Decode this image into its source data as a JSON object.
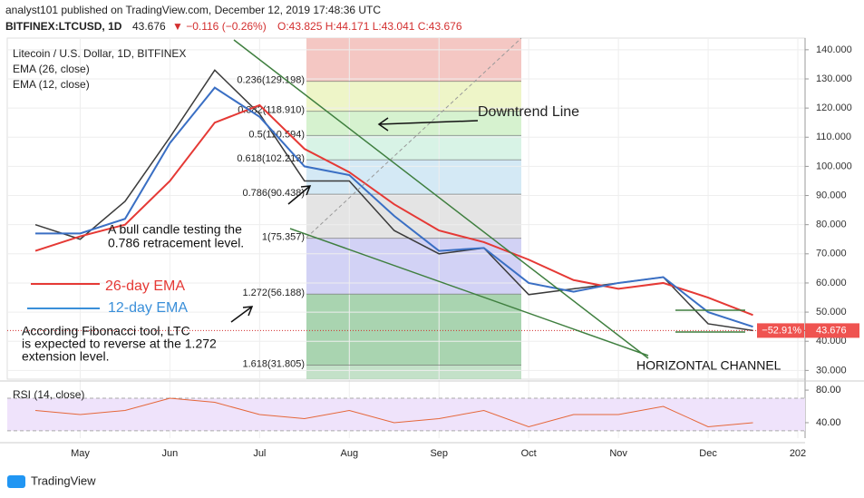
{
  "header": {
    "published": "analyst101 published on TradingView.com, December 12, 2019 17:48:36 UTC",
    "symbol": "BITFINEX:LTCUSD, 1D",
    "last": "43.676",
    "change": "▼ −0.116 (−0.26%)",
    "ohlc": "O:43.825 H:44.171 L:43.041 C:43.676",
    "brand": "TradingView"
  },
  "chart_data": [
    {
      "type": "line",
      "title": "Litecoin / U.S. Dollar, 1D, BITFINEX",
      "categories": [
        null,
        "May",
        null,
        "Jun",
        null,
        "Jul",
        null,
        "Aug",
        null,
        "Sep",
        null,
        "Oct",
        null,
        "Nov",
        null,
        "Dec",
        null,
        "202"
      ],
      "series": [
        {
          "color": "#3b3b3b",
          "values": [
            80,
            75,
            88,
            110,
            133,
            118,
            95,
            95,
            78,
            70,
            72,
            56,
            58,
            60,
            62,
            46,
            43.676,
            null
          ]
        },
        {
          "name": "EMA (26, close)",
          "color": "#e53935",
          "values": [
            71,
            76,
            80,
            95,
            115,
            121,
            106,
            98,
            87,
            78,
            74,
            68,
            61,
            58,
            60,
            55,
            49,
            null
          ]
        },
        {
          "name": "EMA (12, close)",
          "color": "#3a6fc4",
          "values": [
            77,
            77,
            82,
            108,
            127,
            117,
            100,
            97,
            83,
            71,
            72,
            60,
            57,
            60,
            62,
            50,
            45,
            null
          ]
        }
      ],
      "ylim": [
        27,
        144
      ],
      "yticks": [
        {
          "value": 30,
          "label": "30.000"
        },
        {
          "value": 40,
          "label": "40.000"
        },
        {
          "value": 50,
          "label": "50.000"
        },
        {
          "value": 60,
          "label": "60.000"
        },
        {
          "value": 70,
          "label": "70.000"
        },
        {
          "value": 80,
          "label": "80.000"
        },
        {
          "value": 90,
          "label": "90.000"
        },
        {
          "value": 100,
          "label": "100.000"
        },
        {
          "value": 110,
          "label": "110.000"
        },
        {
          "value": 120,
          "label": "120.000"
        },
        {
          "value": 130,
          "label": "130.000"
        },
        {
          "value": 140,
          "label": "140.000"
        }
      ],
      "grid": true,
      "last_price": {
        "value": 43.676,
        "label": "43.676"
      },
      "change_pct": {
        "value": -52.91,
        "label": "−52.91%"
      },
      "fib_levels": [
        {
          "label": "0.236(129.198)",
          "value": 129.198,
          "color": "#f4c7c3"
        },
        {
          "label": "0.382(118.910)",
          "value": 118.91,
          "color": "#eef5c8"
        },
        {
          "label": "0.5(110.594)",
          "value": 110.594,
          "color": "#d6f2cf"
        },
        {
          "label": "0.618(102.213)",
          "value": 102.213,
          "color": "#d8f3e6"
        },
        {
          "label": "0.786(90.438)",
          "value": 90.438,
          "color": "#d4e9f5"
        },
        {
          "label": "1(75.357)",
          "value": 75.357,
          "color": "#e4e4e4"
        },
        {
          "label": "1.272(56.188)",
          "value": 56.188,
          "color": "#d2d2f5"
        },
        {
          "label": "1.618(31.805)",
          "value": 31.805,
          "color": "#a9d4b0"
        }
      ],
      "annotations": {
        "downtrend": "Downtrend Line",
        "bull1": "A bull candle testing the",
        "bull2": "0.786 retracement level.",
        "ema26": "26-day EMA",
        "ema12": "12-day EMA",
        "fib1": "According Fibonacci tool, LTC",
        "fib2": "is expected to reverse at the 1.272",
        "fib3": "extension level.",
        "channel": "HORIZONTAL CHANNEL"
      }
    },
    {
      "type": "line",
      "title": "RSI (14, close)",
      "series": [
        {
          "color": "#e5673a",
          "values": [
            55,
            50,
            55,
            70,
            65,
            50,
            45,
            55,
            40,
            45,
            55,
            35,
            50,
            50,
            60,
            35,
            40,
            null
          ]
        }
      ],
      "ylim": [
        21,
        89
      ],
      "yticks": [
        {
          "value": 40,
          "label": "40.00"
        },
        {
          "value": 80,
          "label": "80.00"
        }
      ],
      "band": [
        30,
        70
      ]
    }
  ]
}
